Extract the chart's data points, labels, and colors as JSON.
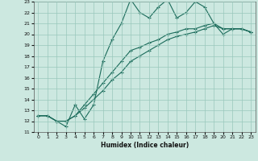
{
  "xlabel": "Humidex (Indice chaleur)",
  "background_color": "#cce8e0",
  "grid_color": "#99c8bc",
  "line_color": "#1a6b5a",
  "xlim": [
    -0.5,
    23.5
  ],
  "ylim": [
    11,
    23
  ],
  "xticks": [
    0,
    1,
    2,
    3,
    4,
    5,
    6,
    7,
    8,
    9,
    10,
    11,
    12,
    13,
    14,
    15,
    16,
    17,
    18,
    19,
    20,
    21,
    22,
    23
  ],
  "yticks": [
    11,
    12,
    13,
    14,
    15,
    16,
    17,
    18,
    19,
    20,
    21,
    22,
    23
  ],
  "line1_x": [
    0,
    1,
    2,
    3,
    4,
    5,
    6,
    7,
    8,
    9,
    10,
    11,
    12,
    13,
    14,
    15,
    16,
    17,
    18,
    19,
    20,
    21,
    22,
    23
  ],
  "line1_y": [
    12.5,
    12.5,
    12.0,
    11.5,
    13.5,
    12.2,
    13.5,
    17.5,
    19.5,
    21.0,
    23.2,
    22.0,
    21.5,
    22.5,
    23.2,
    21.5,
    22.0,
    23.0,
    22.5,
    21.0,
    20.0,
    20.5,
    20.5,
    20.2
  ],
  "line2_x": [
    0,
    1,
    2,
    3,
    4,
    5,
    6,
    7,
    8,
    9,
    10,
    11,
    12,
    13,
    14,
    15,
    16,
    17,
    18,
    19,
    20,
    21,
    22,
    23
  ],
  "line2_y": [
    12.5,
    12.5,
    12.0,
    12.0,
    12.5,
    13.5,
    14.5,
    15.5,
    16.5,
    17.5,
    18.5,
    18.8,
    19.2,
    19.5,
    20.0,
    20.2,
    20.5,
    20.5,
    20.8,
    21.0,
    20.5,
    20.5,
    20.5,
    20.2
  ],
  "line3_x": [
    0,
    1,
    2,
    3,
    4,
    5,
    6,
    7,
    8,
    9,
    10,
    11,
    12,
    13,
    14,
    15,
    16,
    17,
    18,
    19,
    20,
    21,
    22,
    23
  ],
  "line3_y": [
    12.5,
    12.5,
    12.0,
    12.0,
    12.5,
    13.2,
    14.0,
    14.8,
    15.8,
    16.5,
    17.5,
    18.0,
    18.5,
    19.0,
    19.5,
    19.8,
    20.0,
    20.2,
    20.5,
    20.8,
    20.5,
    20.5,
    20.5,
    20.2
  ]
}
